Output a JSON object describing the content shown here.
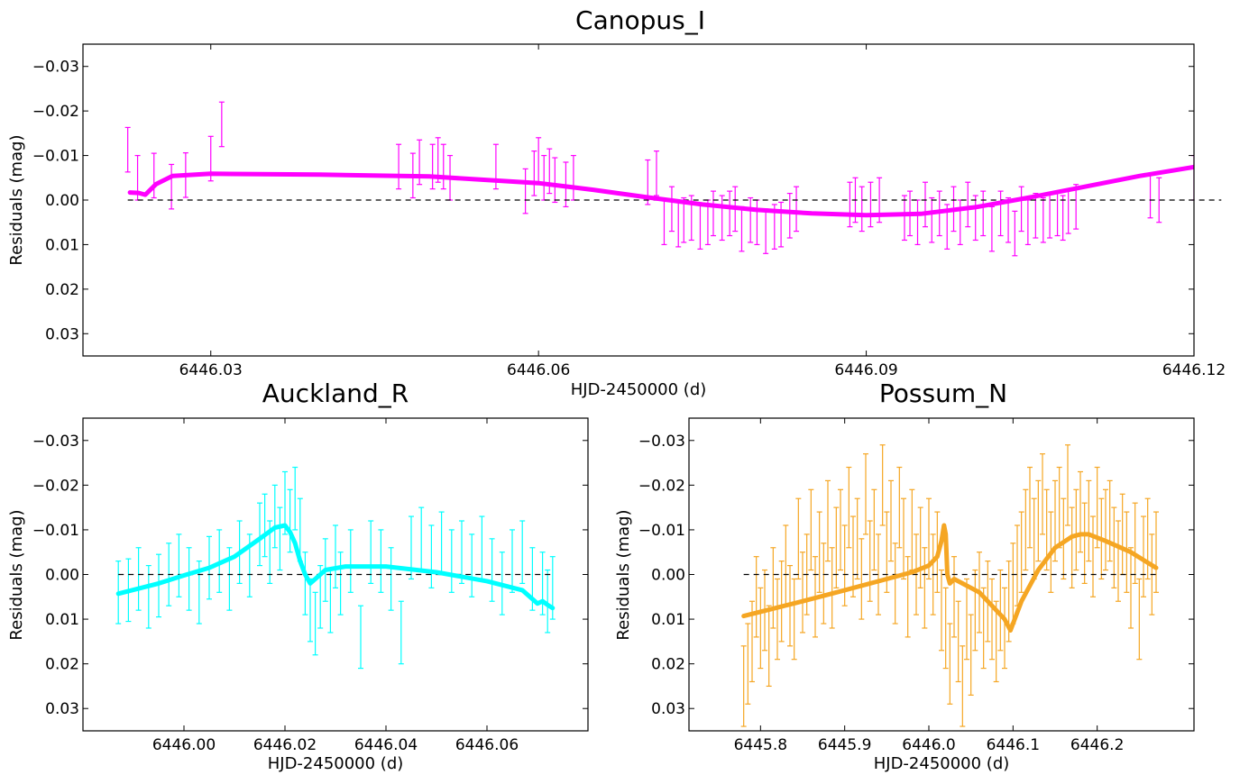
{
  "chart_data": [
    {
      "type": "scatter",
      "title": "Canopus_I",
      "xlabel": "HJD-2450000 (d)",
      "ylabel": "Residuals (mag)",
      "xlim": [
        6446.0183,
        6446.12
      ],
      "ylim": [
        0.035,
        -0.035
      ],
      "y_inverted": true,
      "xticks": [
        6446.03,
        6446.06,
        6446.09,
        6446.12
      ],
      "xtick_labels": [
        "6446.03",
        "6446.06",
        "6446.09",
        "6446.12"
      ],
      "yticks": [
        -0.03,
        -0.02,
        -0.01,
        0.0,
        0.01,
        0.02,
        0.03
      ],
      "ytick_labels": [
        "−0.03",
        "−0.02",
        "−0.01",
        "0.00",
        "0.01",
        "0.02",
        "0.03"
      ],
      "reference_line": 0.0,
      "color": "#ff00ff",
      "model": {
        "x": [
          6446.0226,
          6446.0234,
          6446.024,
          6446.025,
          6446.0265,
          6446.03,
          6446.04,
          6446.05,
          6446.06,
          6446.065,
          6446.07,
          6446.075,
          6446.08,
          6446.085,
          6446.09,
          6446.095,
          6446.1,
          6446.105,
          6446.11,
          6446.115,
          6446.12
        ],
        "y": [
          -0.0017,
          -0.0016,
          -0.0012,
          -0.0036,
          -0.0054,
          -0.0059,
          -0.0057,
          -0.0053,
          -0.0038,
          -0.0023,
          -0.0006,
          0.001,
          0.0022,
          0.003,
          0.0034,
          0.0031,
          0.0016,
          -0.0006,
          -0.003,
          -0.0054,
          -0.0074
        ]
      },
      "points": {
        "x": [
          6446.0224,
          6446.0233,
          6446.0248,
          6446.0264,
          6446.0277,
          6446.03,
          6446.031,
          6446.0472,
          6446.0485,
          6446.0491,
          6446.0503,
          6446.0508,
          6446.0513,
          6446.0519,
          6446.0561,
          6446.0588,
          6446.0596,
          6446.06,
          6446.0605,
          6446.061,
          6446.0615,
          6446.0625,
          6446.0632,
          6446.07,
          6446.0708,
          6446.0715,
          6446.0722,
          6446.0728,
          6446.0733,
          6446.074,
          6446.0748,
          6446.0755,
          6446.076,
          6446.0768,
          6446.0775,
          6446.078,
          6446.0786,
          6446.0794,
          6446.08,
          6446.0808,
          6446.0816,
          6446.0822,
          6446.083,
          6446.0836,
          6446.0885,
          6446.089,
          6446.0896,
          6446.0904,
          6446.0912,
          6446.0935,
          6446.094,
          6446.0947,
          6446.0954,
          6446.096,
          6446.0967,
          6446.0974,
          6446.098,
          6446.0986,
          6446.0993,
          6446.1,
          6446.1007,
          6446.1015,
          6446.1023,
          6446.103,
          6446.1036,
          6446.1042,
          6446.1048,
          6446.1055,
          6446.1062,
          6446.1068,
          6446.1075,
          6446.108,
          6446.1085,
          6446.1092,
          6446.116,
          6446.1168,
          6446.12,
          6446.121,
          6446.1218,
          6446.1225
        ],
        "y": [
          -0.0113,
          -0.005,
          -0.0055,
          -0.003,
          -0.0056,
          -0.0093,
          -0.017,
          -0.0075,
          -0.0055,
          -0.0085,
          -0.0075,
          -0.009,
          -0.0075,
          -0.005,
          -0.0075,
          -0.002,
          -0.006,
          -0.009,
          -0.005,
          -0.0065,
          -0.0045,
          -0.0035,
          -0.005,
          -0.004,
          -0.006,
          0.005,
          0.002,
          0.0055,
          0.0045,
          0.004,
          0.006,
          0.005,
          0.003,
          0.004,
          0.003,
          0.002,
          0.0065,
          0.0045,
          0.005,
          0.007,
          0.006,
          0.0055,
          0.0035,
          0.002,
          0.001,
          0.0,
          0.002,
          0.001,
          0.0,
          0.004,
          0.003,
          0.005,
          0.001,
          0.0045,
          0.003,
          0.006,
          0.002,
          0.005,
          0.001,
          0.004,
          0.003,
          0.0065,
          0.003,
          0.0045,
          0.0075,
          0.002,
          0.005,
          0.0035,
          0.0045,
          0.0035,
          0.003,
          0.004,
          0.0025,
          0.0015,
          -0.001,
          0.0,
          -0.005,
          -0.0045,
          -0.002,
          -0.0045
        ],
        "err": 0.005
      }
    },
    {
      "type": "scatter",
      "title": "Auckland_R",
      "xlabel": "HJD-2450000 (d)",
      "ylabel": "Residuals (mag)",
      "xlim": [
        6445.98,
        6446.08
      ],
      "ylim": [
        0.035,
        -0.035
      ],
      "y_inverted": true,
      "xticks": [
        6446.0,
        6446.02,
        6446.04,
        6446.06
      ],
      "xtick_labels": [
        "6446.00",
        "6446.02",
        "6446.04",
        "6446.06"
      ],
      "yticks": [
        -0.03,
        -0.02,
        -0.01,
        0.0,
        0.01,
        0.02,
        0.03
      ],
      "ytick_labels": [
        "−0.03",
        "−0.02",
        "−0.01",
        "0.00",
        "0.01",
        "0.02",
        "0.03"
      ],
      "reference_line": 0.0,
      "color": "#00ffff",
      "model": {
        "x": [
          6445.987,
          6445.995,
          6446.0,
          6446.005,
          6446.01,
          6446.015,
          6446.018,
          6446.02,
          6446.021,
          6446.022,
          6446.023,
          6446.024,
          6446.025,
          6446.026,
          6446.028,
          6446.032,
          6446.04,
          6446.05,
          6446.06,
          6446.067,
          6446.069,
          6446.07,
          6446.071,
          6446.072,
          6446.073
        ],
        "y": [
          0.0043,
          0.002,
          0.0002,
          -0.0015,
          -0.004,
          -0.008,
          -0.0105,
          -0.011,
          -0.0095,
          -0.007,
          -0.003,
          0.0,
          0.002,
          0.001,
          -0.001,
          -0.0018,
          -0.0018,
          -0.0005,
          0.0015,
          0.0035,
          0.0055,
          0.0065,
          0.006,
          0.0068,
          0.0075
        ]
      },
      "points": {
        "x": [
          6445.987,
          6445.989,
          6445.991,
          6445.993,
          6445.995,
          6445.997,
          6445.999,
          6446.001,
          6446.003,
          6446.005,
          6446.007,
          6446.009,
          6446.011,
          6446.013,
          6446.015,
          6446.016,
          6446.017,
          6446.018,
          6446.019,
          6446.02,
          6446.021,
          6446.022,
          6446.023,
          6446.024,
          6446.025,
          6446.026,
          6446.027,
          6446.028,
          6446.029,
          6446.03,
          6446.031,
          6446.033,
          6446.035,
          6446.037,
          6446.039,
          6446.041,
          6446.043,
          6446.045,
          6446.047,
          6446.049,
          6446.051,
          6446.053,
          6446.055,
          6446.057,
          6446.059,
          6446.061,
          6446.063,
          6446.065,
          6446.067,
          6446.069,
          6446.071,
          6446.072,
          6446.073
        ],
        "y": [
          0.004,
          0.0035,
          0.001,
          0.005,
          0.0025,
          0.0,
          -0.002,
          0.001,
          0.004,
          -0.0015,
          -0.003,
          0.001,
          -0.005,
          -0.002,
          -0.009,
          -0.011,
          -0.005,
          -0.013,
          -0.008,
          -0.016,
          -0.012,
          -0.017,
          -0.01,
          0.002,
          0.008,
          0.011,
          0.005,
          -0.001,
          0.006,
          -0.004,
          0.002,
          -0.003,
          0.014,
          -0.005,
          -0.003,
          0.001,
          0.013,
          -0.006,
          -0.008,
          -0.004,
          -0.007,
          -0.003,
          -0.005,
          -0.002,
          -0.006,
          -0.001,
          0.002,
          -0.003,
          -0.005,
          0.001,
          0.002,
          0.006,
          0.003
        ],
        "err": 0.007
      }
    },
    {
      "type": "scatter",
      "title": "Possum_N",
      "xlabel": "HJD-2450000 (d)",
      "ylabel": "Residuals (mag)",
      "xlim": [
        6445.715,
        6446.315
      ],
      "ylim": [
        0.035,
        -0.035
      ],
      "y_inverted": true,
      "xticks": [
        6445.8,
        6445.9,
        6446.0,
        6446.1,
        6446.2
      ],
      "xtick_labels": [
        "6445.8",
        "6445.9",
        "6446.0",
        "6446.1",
        "6446.2"
      ],
      "yticks": [
        -0.03,
        -0.02,
        -0.01,
        0.0,
        0.01,
        0.02,
        0.03
      ],
      "ytick_labels": [
        "−0.03",
        "−0.02",
        "−0.01",
        "0.00",
        "0.01",
        "0.02",
        "0.03"
      ],
      "reference_line": 0.0,
      "color": "#f5a623",
      "model": {
        "x": [
          6445.78,
          6445.85,
          6445.9,
          6445.95,
          6445.98,
          6446.0,
          6446.01,
          6446.015,
          6446.018,
          6446.02,
          6446.022,
          6446.025,
          6446.03,
          6446.06,
          6446.09,
          6446.097,
          6446.11,
          6446.13,
          6446.15,
          6446.17,
          6446.18,
          6446.19,
          6446.21,
          6446.24,
          6446.27
        ],
        "y": [
          0.0093,
          0.006,
          0.0035,
          0.001,
          -0.0005,
          -0.002,
          -0.004,
          -0.0075,
          -0.011,
          -0.009,
          0.0,
          0.002,
          0.001,
          0.004,
          0.01,
          0.0125,
          0.006,
          -0.001,
          -0.006,
          -0.0085,
          -0.009,
          -0.009,
          -0.0075,
          -0.005,
          -0.0015
        ]
      },
      "points": {
        "x": [
          6445.78,
          6445.785,
          6445.79,
          6445.795,
          6445.8,
          6445.805,
          6445.81,
          6445.815,
          6445.82,
          6445.825,
          6445.83,
          6445.835,
          6445.84,
          6445.845,
          6445.85,
          6445.855,
          6445.86,
          6445.865,
          6445.87,
          6445.875,
          6445.88,
          6445.885,
          6445.89,
          6445.895,
          6445.9,
          6445.905,
          6445.91,
          6445.915,
          6445.92,
          6445.925,
          6445.93,
          6445.935,
          6445.94,
          6445.945,
          6445.95,
          6445.955,
          6445.96,
          6445.965,
          6445.97,
          6445.975,
          6445.98,
          6445.985,
          6445.99,
          6445.995,
          6446.0,
          6446.005,
          6446.01,
          6446.015,
          6446.02,
          6446.025,
          6446.03,
          6446.035,
          6446.04,
          6446.045,
          6446.05,
          6446.055,
          6446.06,
          6446.065,
          6446.07,
          6446.075,
          6446.08,
          6446.085,
          6446.09,
          6446.095,
          6446.1,
          6446.105,
          6446.11,
          6446.115,
          6446.12,
          6446.125,
          6446.13,
          6446.135,
          6446.14,
          6446.145,
          6446.15,
          6446.155,
          6446.16,
          6446.165,
          6446.17,
          6446.175,
          6446.18,
          6446.185,
          6446.19,
          6446.195,
          6446.2,
          6446.205,
          6446.21,
          6446.215,
          6446.22,
          6446.225,
          6446.23,
          6446.235,
          6446.24,
          6446.245,
          6446.25,
          6446.255,
          6446.26,
          6446.265,
          6446.27
        ],
        "y": [
          0.025,
          0.02,
          0.015,
          0.005,
          0.012,
          0.008,
          0.016,
          0.003,
          0.01,
          0.006,
          -0.002,
          0.007,
          0.01,
          -0.008,
          0.004,
          0.0,
          -0.01,
          0.005,
          -0.005,
          0.002,
          -0.012,
          0.003,
          -0.006,
          -0.01,
          -0.002,
          -0.015,
          -0.004,
          -0.008,
          0.001,
          -0.018,
          -0.003,
          -0.01,
          0.0,
          -0.02,
          -0.005,
          -0.012,
          0.002,
          -0.015,
          -0.008,
          0.005,
          -0.01,
          0.0,
          -0.006,
          0.003,
          -0.008,
          0.0,
          -0.005,
          0.008,
          0.012,
          0.02,
          0.005,
          0.015,
          0.025,
          0.01,
          0.018,
          0.008,
          0.004,
          0.012,
          0.006,
          0.01,
          0.015,
          0.008,
          0.012,
          0.006,
          0.002,
          -0.002,
          -0.005,
          -0.01,
          -0.015,
          -0.008,
          -0.012,
          -0.018,
          -0.01,
          -0.005,
          -0.012,
          -0.015,
          -0.008,
          -0.02,
          -0.006,
          -0.01,
          -0.014,
          -0.007,
          -0.012,
          -0.004,
          -0.015,
          -0.008,
          -0.01,
          -0.012,
          -0.006,
          -0.003,
          -0.009,
          -0.005,
          0.003,
          -0.007,
          0.01,
          -0.004,
          -0.008,
          0.0,
          -0.005
        ],
        "err": 0.009
      }
    }
  ]
}
